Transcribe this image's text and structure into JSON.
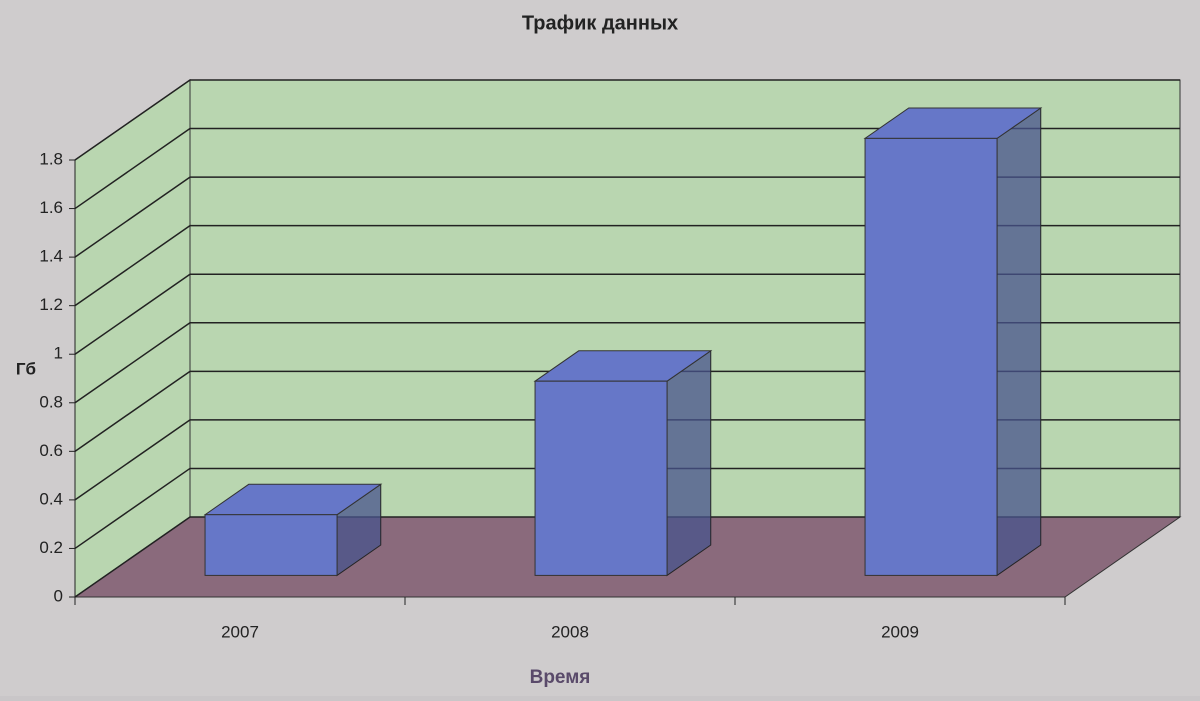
{
  "chart_data": {
    "type": "bar3d",
    "title": "Трафик данных",
    "x_label": "Время",
    "y_label": "Гб",
    "categories": [
      "2007",
      "2008",
      "2009"
    ],
    "values": [
      0.25,
      0.8,
      1.8
    ],
    "color": "#6677c8",
    "ylim": [
      0,
      1.8
    ],
    "yticks": [
      0,
      0.2,
      0.4,
      0.6,
      0.8,
      1,
      1.2,
      1.4,
      1.6,
      1.8
    ],
    "grid": true,
    "wall_color": "#b9d6b0",
    "floor_color": "#8a6a7c"
  }
}
